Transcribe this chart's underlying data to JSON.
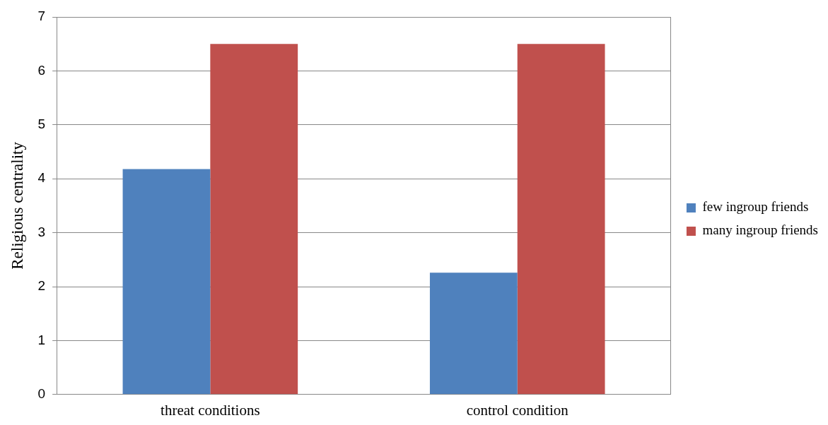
{
  "chart_data": {
    "type": "bar",
    "ylabel": "Religious centrality",
    "categories": [
      "threat conditions",
      "control condition"
    ],
    "series": [
      {
        "name": "few ingroup friends",
        "color": "#4f81bd",
        "values": [
          4.18,
          2.26
        ]
      },
      {
        "name": "many ingroup friends",
        "color": "#c0504d",
        "values": [
          6.5,
          6.5
        ]
      }
    ],
    "ylim": [
      0,
      7
    ],
    "yticks": [
      0,
      1,
      2,
      3,
      4,
      5,
      6,
      7
    ],
    "grid": "y",
    "legend": "right"
  }
}
